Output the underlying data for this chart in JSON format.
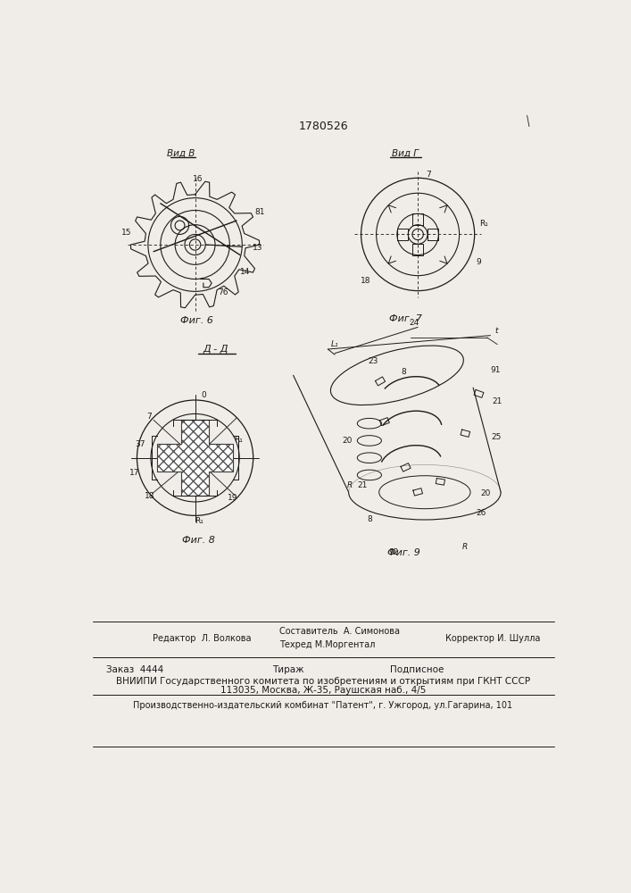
{
  "title": "1780526",
  "bg_color": "#f0ede8",
  "line_color": "#1a1a1a",
  "fig6_label": "Вид В",
  "fig6_caption": "Фиг. 6",
  "fig7_label": "Вид Г",
  "fig7_caption": "Фиг. 7",
  "fig8_caption": "Фиг. 8",
  "fig8_label": "Д - Д",
  "fig9_caption": "Фиг. 9",
  "footer_line1_left": "Редактор  Л. Волкова",
  "footer_line1_right": "Корректор И. Шулла",
  "footer_comp1": "Составитель  А. Симонова",
  "footer_comp2": "Техред М.Моргентал",
  "footer_line2a": "Заказ  4444",
  "footer_line2b": "Тираж",
  "footer_line2c": "Подписное",
  "footer_line3": "ВНИИПИ Государственного комитета по изобретениям и открытиям при ГКНТ СССР",
  "footer_line4": "113035, Москва, Ж-35, Раушская наб., 4/5",
  "footer_line5": "Производственно-издательский комбинат \"Патент\", г. Ужгород, ул.Гагарина, 101"
}
